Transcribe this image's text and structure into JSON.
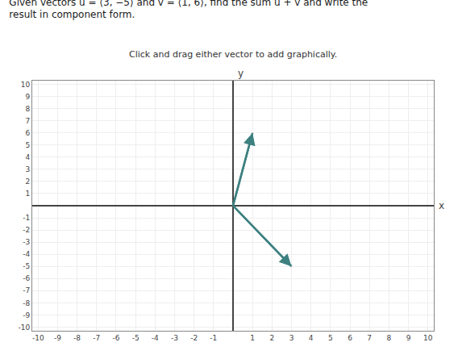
{
  "chart_data": {
    "type": "vector",
    "title": "Given vectors u = ⟨3, −5⟩ and v = ⟨1, 6⟩, find the sum u + v and write the result in component form.",
    "subtitle": "Click and drag either vector to add graphically.",
    "xlabel": "x",
    "ylabel": "y",
    "series": [
      {
        "color": "#3d8080",
        "x": [
          0,
          3
        ],
        "y": [
          0,
          -5
        ]
      },
      {
        "color": "#3d8080",
        "x": [
          0,
          1
        ],
        "y": [
          0,
          6
        ]
      }
    ],
    "xlim": [
      -10.3,
      10.3
    ],
    "ylim": [
      -10.3,
      10.3
    ],
    "xticks": [
      -10,
      -9,
      -8,
      -7,
      -6,
      -5,
      -4,
      -3,
      -2,
      -1,
      1,
      2,
      3,
      4,
      5,
      6,
      7,
      8,
      9,
      10
    ],
    "yticks": [
      -10,
      -9,
      -8,
      -7,
      -6,
      -5,
      -4,
      -3,
      -2,
      -1,
      1,
      2,
      3,
      4,
      5,
      6,
      7,
      8,
      9,
      10
    ],
    "grid": true
  }
}
